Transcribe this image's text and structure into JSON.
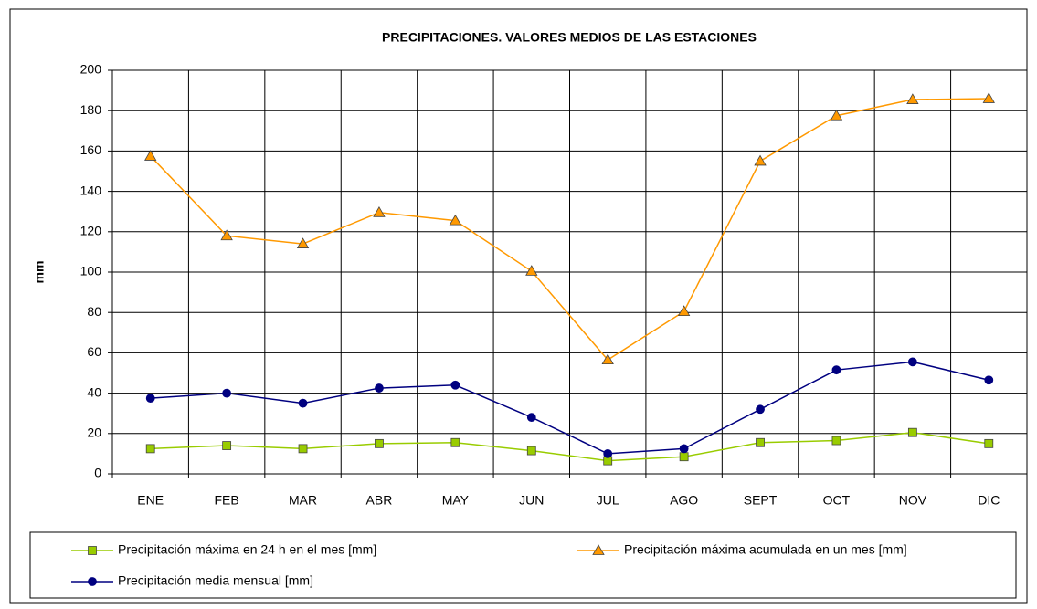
{
  "chart_data": {
    "type": "line",
    "title": "PRECIPITACIONES. VALORES MEDIOS DE LAS ESTACIONES",
    "y_label": "mm",
    "categories": [
      "ENE",
      "FEB",
      "MAR",
      "ABR",
      "MAY",
      "JUN",
      "JUL",
      "AGO",
      "SEPT",
      "OCT",
      "NOV",
      "DIC"
    ],
    "series": [
      {
        "name": "Precipitación máxima en 24 h en el mes [mm]",
        "color": "#99cc00",
        "marker": "square",
        "values": [
          12.5,
          14,
          12.5,
          15,
          15.5,
          11.5,
          6.5,
          8.5,
          15.5,
          16.5,
          20.5,
          15
        ]
      },
      {
        "name": "Precipitación máxima acumulada en un mes [mm]",
        "color": "#ff9900",
        "marker": "triangle",
        "values": [
          157.5,
          118,
          114,
          129.5,
          125.5,
          100.5,
          56.5,
          80.5,
          155,
          177.5,
          185.5,
          186
        ]
      },
      {
        "name": "Precipitación media mensual [mm]",
        "color": "#000080",
        "marker": "circle",
        "values": [
          37.5,
          40,
          35,
          42.5,
          44,
          28,
          10,
          12.5,
          32,
          51.5,
          55.5,
          46.5
        ]
      }
    ],
    "ylim": [
      0,
      200
    ],
    "yticks": [
      0,
      20,
      40,
      60,
      80,
      100,
      120,
      140,
      160,
      180,
      200
    ],
    "grid": true,
    "legend": "bottom"
  }
}
